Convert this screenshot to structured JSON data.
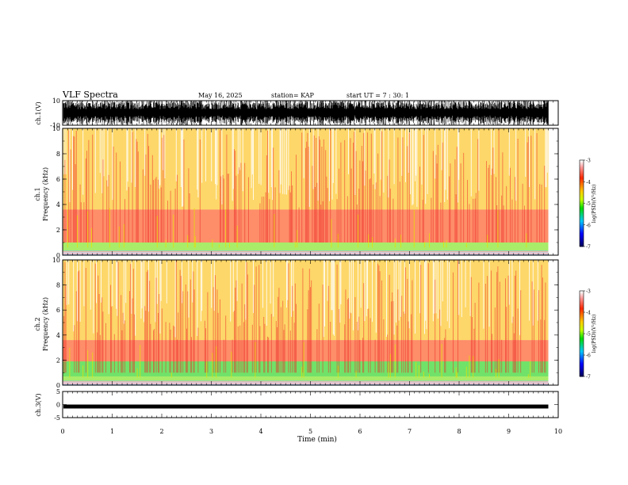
{
  "header": {
    "title": "VLF Spectra",
    "date": "May 16, 2025",
    "station": "station= KAP",
    "start": "start  UT  =   7 : 30: 1"
  },
  "chart_data": [
    {
      "type": "line",
      "panel": "ch1-waveform",
      "ylabel": "ch.1(V)",
      "ytick_labels": [
        "10",
        "-10"
      ],
      "ylim": [
        -10,
        10
      ],
      "xlim": [
        0,
        10
      ],
      "series_desc_values": "dense waveform filling ~ -10 to 10 V across the 0–9.8 min interval"
    },
    {
      "type": "heatmap",
      "panel": "ch1-spectrogram",
      "ylabel": "ch.1\nFrequency  (kHz)",
      "ylabel_lines": [
        "ch.1",
        "Frequency  (kHz)"
      ],
      "ylim": [
        0,
        10
      ],
      "yticks": [
        0,
        2,
        4,
        6,
        8,
        10
      ],
      "xlim": [
        0,
        10
      ],
      "data_end_min": 9.8,
      "bands": [
        {
          "from_khz": 0.3,
          "to_khz": 1.0,
          "level": -5.0
        },
        {
          "from_khz": 1.0,
          "to_khz": 3.6,
          "level": -3.9
        },
        {
          "from_khz": 3.6,
          "to_khz": 10.0,
          "level": -4.4
        }
      ],
      "colorbar": {
        "label": "log(PSD)(V²/Hz)",
        "ticks": [
          "-3",
          "-4",
          "-5",
          "-6",
          "-7"
        ],
        "range": [
          -7,
          -3
        ]
      }
    },
    {
      "type": "heatmap",
      "panel": "ch2-spectrogram",
      "ylabel_lines": [
        "ch.2",
        "Frequency  (kHz)"
      ],
      "ylim": [
        0,
        10
      ],
      "yticks": [
        0,
        2,
        4,
        6,
        8,
        10
      ],
      "xlim": [
        0,
        10
      ],
      "data_end_min": 9.8,
      "bands": [
        {
          "from_khz": 0.3,
          "to_khz": 0.7,
          "level": -5.0
        },
        {
          "from_khz": 0.7,
          "to_khz": 1.9,
          "level": -5.2
        },
        {
          "from_khz": 1.9,
          "to_khz": 3.6,
          "level": -3.9
        },
        {
          "from_khz": 3.6,
          "to_khz": 10.0,
          "level": -4.4
        }
      ],
      "colorbar": {
        "label": "log(PSD)(V²/Hz)",
        "ticks": [
          "-3",
          "-4",
          "-5",
          "-6",
          "-7"
        ],
        "range": [
          -7,
          -3
        ]
      }
    },
    {
      "type": "line",
      "panel": "ch3-waveform",
      "ylabel": "ch.3(V)",
      "ytick_labels": [
        "5",
        "0",
        "-5"
      ],
      "ylim": [
        -5,
        5
      ],
      "xlim": [
        0,
        10
      ],
      "band_v": [
        -1.5,
        0.0
      ]
    }
  ],
  "xaxis": {
    "label": "Time  (min)",
    "ticks": [
      "0",
      "1",
      "2",
      "3",
      "4",
      "5",
      "6",
      "7",
      "8",
      "9",
      "10"
    ],
    "range": [
      0,
      10
    ]
  }
}
